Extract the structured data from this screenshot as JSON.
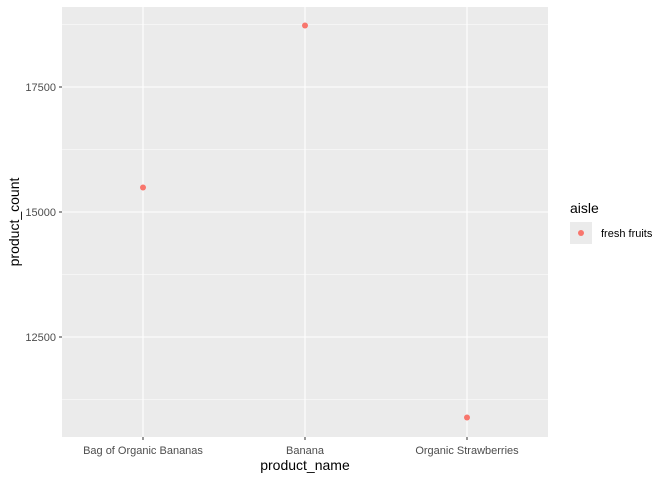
{
  "chart_data": {
    "type": "scatter",
    "xlabel": "product_name",
    "ylabel": "product_count",
    "categories": [
      "Bag of Organic Bananas",
      "Banana",
      "Organic Strawberries"
    ],
    "series": [
      {
        "name": "fresh fruits",
        "color": "#F8766D",
        "points": [
          {
            "x": "Bag of Organic Bananas",
            "y": 15490
          },
          {
            "x": "Banana",
            "y": 18730
          },
          {
            "x": "Organic Strawberries",
            "y": 10890
          }
        ]
      }
    ],
    "ylim": [
      10500,
      19100
    ],
    "y_ticks": [
      12500,
      15000,
      17500
    ],
    "y_tick_labels": [
      "12500",
      "15000",
      "17500"
    ],
    "grid": true,
    "panel_background": "#EBEBEB",
    "gridline_color": "#FFFFFF",
    "legend": {
      "title": "aisle",
      "placement": "right",
      "entries": [
        "fresh fruits"
      ]
    }
  }
}
